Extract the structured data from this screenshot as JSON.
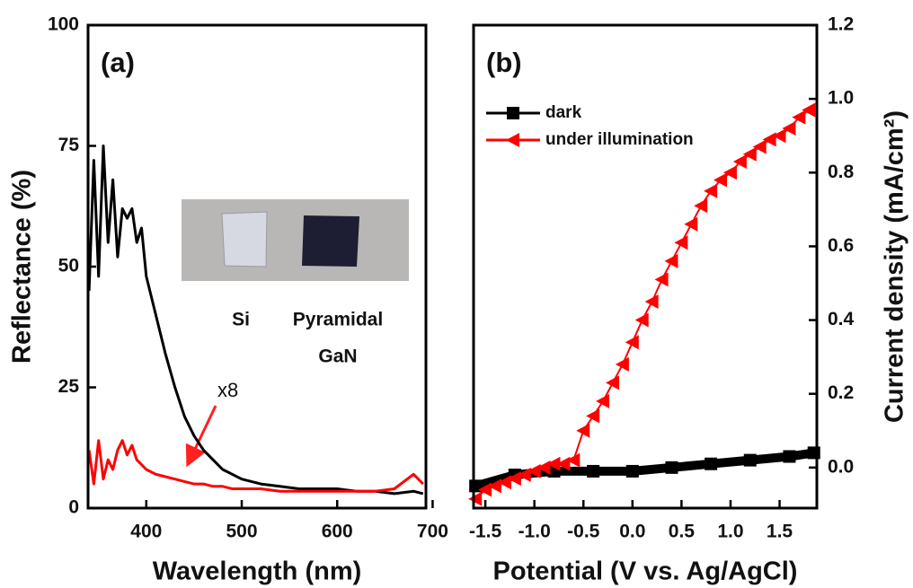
{
  "chart_data": [
    {
      "type": "line",
      "panel_label": "(a)",
      "x_label": "Wavelength (nm)",
      "y_label": "Reflectance (%)",
      "xlim": [
        339,
        693
      ],
      "xticks": [
        400,
        500,
        600,
        700
      ],
      "ylim": [
        0,
        100
      ],
      "yticks": [
        0,
        25,
        50,
        75,
        100
      ],
      "x": [
        340,
        345,
        350,
        355,
        360,
        365,
        370,
        375,
        380,
        385,
        390,
        395,
        400,
        410,
        420,
        430,
        440,
        450,
        460,
        470,
        480,
        490,
        500,
        520,
        540,
        560,
        580,
        600,
        620,
        640,
        660,
        680,
        690
      ],
      "series": [
        {
          "color": "#000000",
          "values": [
            45,
            72,
            48,
            75,
            55,
            68,
            52,
            62,
            60,
            62,
            55,
            58,
            48,
            40,
            32,
            25,
            19,
            15,
            12,
            10,
            8,
            7,
            6,
            5,
            4.5,
            4,
            4,
            4,
            3.5,
            3.5,
            3,
            3.5,
            3
          ]
        },
        {
          "color": "#ff0000",
          "values": [
            12,
            5,
            14,
            6,
            10,
            8,
            12,
            14,
            11,
            13,
            10,
            9,
            8,
            7,
            6.5,
            6,
            5.5,
            5,
            5,
            4.5,
            4.5,
            4,
            4,
            4,
            3.5,
            3.5,
            3.5,
            3.5,
            3.5,
            3.5,
            4,
            7,
            5
          ]
        }
      ],
      "annotations": [
        "x8"
      ],
      "inset_labels": [
        "Si",
        "Pyramidal",
        "GaN"
      ]
    },
    {
      "type": "line",
      "panel_label": "(b)",
      "x_label": "Potential (V vs. Ag/AgCl)",
      "y_label": "Current density (mA/cm²)",
      "xlim": [
        -1.62,
        1.88
      ],
      "xticks": [
        -1.5,
        {
          "value": -1,
          "label": "-1.0"
        },
        -0.5,
        {
          "value": 0,
          "label": "0.0"
        },
        0.5,
        {
          "value": 1,
          "label": "1.0"
        },
        1.5
      ],
      "ylim": [
        -0.11,
        1.2
      ],
      "yticks": [
        {
          "value": 0,
          "label": "0.0"
        },
        0.2,
        0.4,
        0.6,
        0.8,
        {
          "value": 1,
          "label": "1.0"
        },
        1.2
      ],
      "legend": "upper left",
      "series": [
        {
          "name": "dark",
          "color": "#000000",
          "marker": "square",
          "x": [
            -1.6,
            -1.2,
            -0.8,
            -0.4,
            0,
            0.4,
            0.8,
            1.2,
            1.6,
            1.85
          ],
          "values": [
            -0.05,
            -0.02,
            -0.01,
            -0.01,
            -0.01,
            0,
            0.01,
            0.02,
            0.03,
            0.04
          ]
        },
        {
          "name": "under illumination",
          "color": "#ff0000",
          "marker": "triangle-left",
          "x": [
            -1.6,
            -1.5,
            -1.4,
            -1.3,
            -1.2,
            -1.1,
            -1.0,
            -0.9,
            -0.8,
            -0.7,
            -0.6,
            -0.5,
            -0.4,
            -0.3,
            -0.2,
            -0.1,
            0,
            0.1,
            0.2,
            0.3,
            0.4,
            0.5,
            0.6,
            0.7,
            0.8,
            0.9,
            1.0,
            1.1,
            1.2,
            1.3,
            1.4,
            1.5,
            1.6,
            1.7,
            1.8
          ],
          "values": [
            -0.085,
            -0.06,
            -0.05,
            -0.04,
            -0.03,
            -0.02,
            -0.01,
            0,
            0.01,
            0.01,
            0.02,
            0.1,
            0.14,
            0.18,
            0.23,
            0.28,
            0.34,
            0.4,
            0.45,
            0.51,
            0.56,
            0.61,
            0.66,
            0.71,
            0.75,
            0.78,
            0.8,
            0.83,
            0.85,
            0.87,
            0.89,
            0.9,
            0.92,
            0.95,
            0.97
          ]
        }
      ]
    }
  ]
}
